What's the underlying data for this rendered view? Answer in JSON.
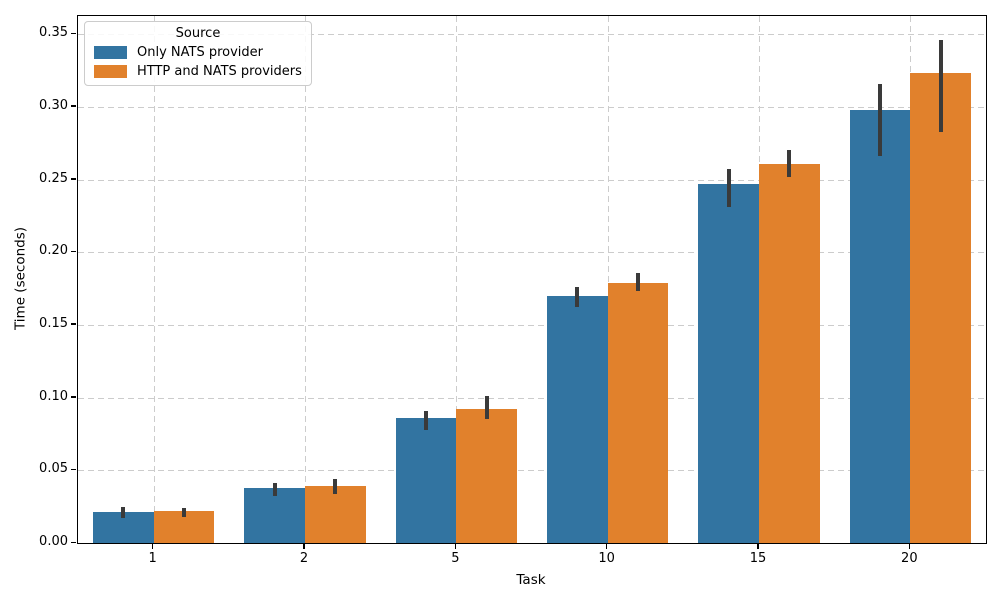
{
  "chart_data": {
    "type": "bar",
    "title": "",
    "xlabel": "Task",
    "ylabel": "Time (seconds)",
    "categories": [
      "1",
      "2",
      "5",
      "10",
      "15",
      "20"
    ],
    "series": [
      {
        "name": "Only NATS provider",
        "color": "#3274a1",
        "values": [
          0.021,
          0.038,
          0.086,
          0.17,
          0.247,
          0.298
        ],
        "ci_low": [
          0.017,
          0.032,
          0.078,
          0.162,
          0.231,
          0.266
        ],
        "ci_high": [
          0.025,
          0.041,
          0.091,
          0.176,
          0.257,
          0.316
        ]
      },
      {
        "name": "HTTP and NATS providers",
        "color": "#e1812c",
        "values": [
          0.022,
          0.039,
          0.092,
          0.179,
          0.261,
          0.323
        ],
        "ci_low": [
          0.018,
          0.034,
          0.085,
          0.173,
          0.252,
          0.283
        ],
        "ci_high": [
          0.024,
          0.044,
          0.101,
          0.186,
          0.27,
          0.346
        ]
      }
    ],
    "ytick_labels": [
      "0.00",
      "0.05",
      "0.10",
      "0.15",
      "0.20",
      "0.25",
      "0.30",
      "0.35"
    ],
    "ylim": [
      0,
      0.3625
    ],
    "grid": "dashed-both-axes",
    "grid_color": "#cccccc",
    "error_bar_color": "#3a3a3a",
    "legend": {
      "title": "Source",
      "position": "upper-left"
    }
  }
}
